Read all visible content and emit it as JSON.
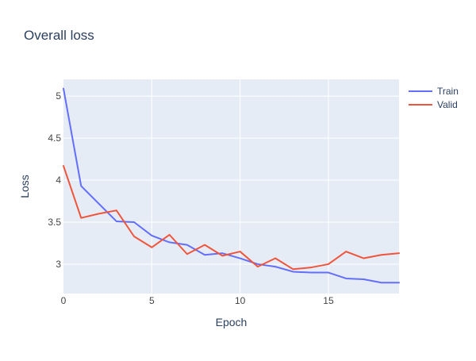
{
  "chart_data": {
    "type": "line",
    "title": "Overall loss",
    "xlabel": "Epoch",
    "ylabel": "Loss",
    "xlim": [
      0,
      19
    ],
    "ylim": [
      2.65,
      5.2
    ],
    "x_ticks": [
      0,
      5,
      10,
      15
    ],
    "x_tick_labels": [
      "0",
      "5",
      "10",
      "15"
    ],
    "y_ticks": [
      3,
      3.5,
      4,
      4.5,
      5
    ],
    "y_tick_labels": [
      "3",
      "3.5",
      "4",
      "4.5",
      "5"
    ],
    "grid": true,
    "legend_position": "top-right",
    "x": [
      0,
      1,
      2,
      3,
      4,
      5,
      6,
      7,
      8,
      9,
      10,
      11,
      12,
      13,
      14,
      15,
      16,
      17,
      18,
      19
    ],
    "series": [
      {
        "name": "Train",
        "color": "#636efa",
        "values": [
          5.09,
          3.93,
          3.72,
          3.51,
          3.5,
          3.34,
          3.26,
          3.23,
          3.11,
          3.13,
          3.07,
          3.0,
          2.97,
          2.91,
          2.9,
          2.9,
          2.83,
          2.82,
          2.78,
          2.78
        ]
      },
      {
        "name": "Valid",
        "color": "#ef553b",
        "values": [
          4.17,
          3.55,
          3.6,
          3.64,
          3.33,
          3.2,
          3.35,
          3.12,
          3.23,
          3.1,
          3.15,
          2.97,
          3.07,
          2.94,
          2.96,
          3.0,
          3.15,
          3.07,
          3.11,
          3.13
        ]
      }
    ],
    "plot_background": "#e5ecf6",
    "grid_color": "#ffffff",
    "text_color": "#2a3f5f",
    "tick_color": "#444444"
  }
}
